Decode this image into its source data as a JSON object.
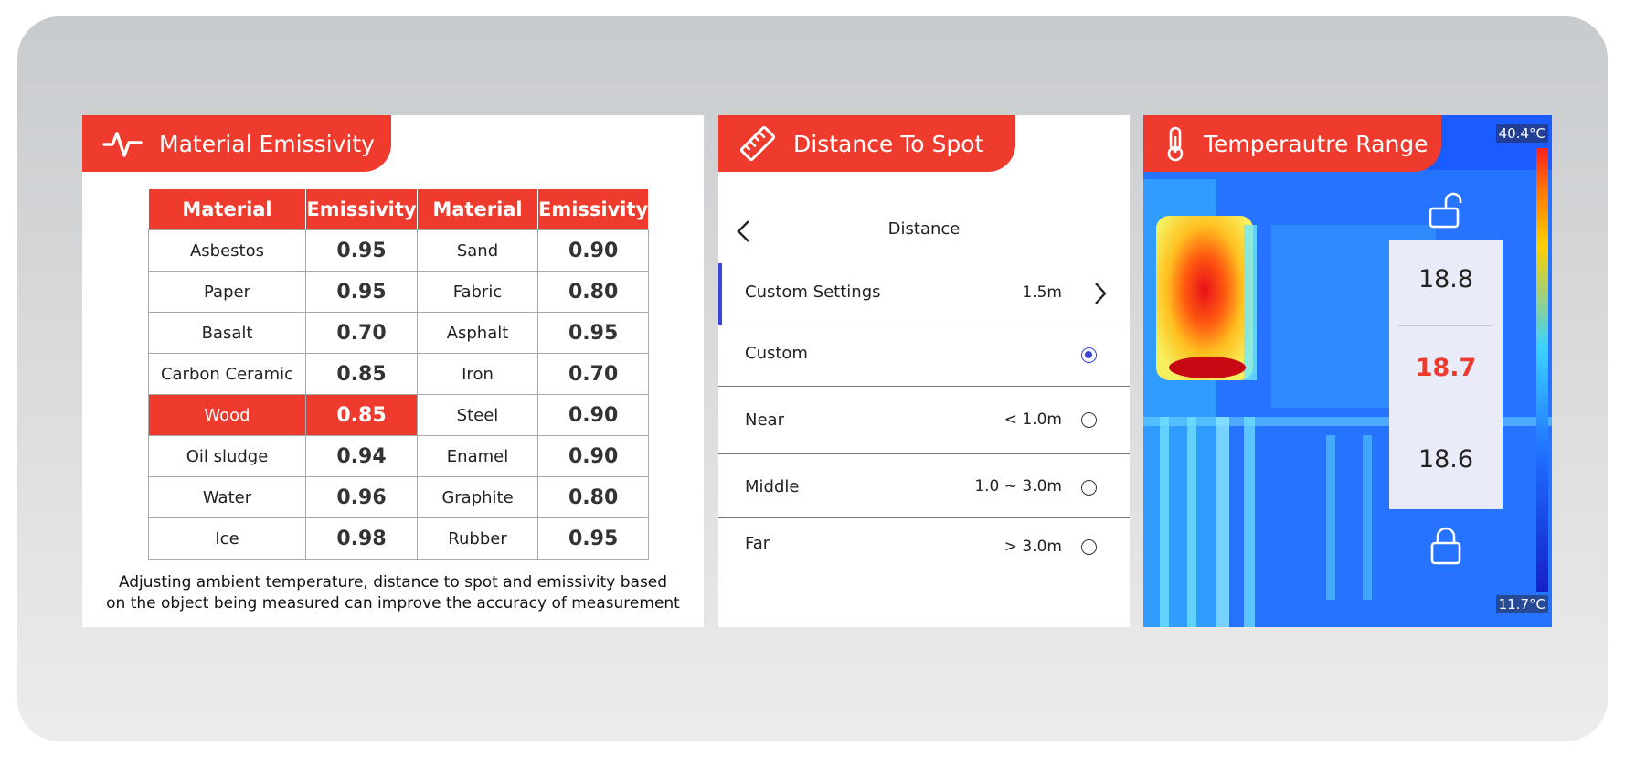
{
  "emissivity_panel": {
    "title": "Material Emissivity",
    "headers": [
      "Material",
      "Emissivity",
      "Material",
      "Emissivity"
    ],
    "rows": [
      [
        "Asbestos",
        "0.95",
        "Sand",
        "0.90"
      ],
      [
        "Paper",
        "0.95",
        "Fabric",
        "0.80"
      ],
      [
        "Basalt",
        "0.70",
        "Asphalt",
        "0.95"
      ],
      [
        "Carbon Ceramic",
        "0.85",
        "Iron",
        "0.70"
      ],
      [
        "Wood",
        "0.85",
        "Steel",
        "0.90"
      ],
      [
        "Oil sludge",
        "0.94",
        "Enamel",
        "0.90"
      ],
      [
        "Water",
        "0.96",
        "Graphite",
        "0.80"
      ],
      [
        "Ice",
        "0.98",
        "Rubber",
        "0.95"
      ]
    ],
    "highlighted_material": "Wood",
    "note_line1": "Adjusting ambient temperature, distance to spot and emissivity based",
    "note_line2": "on the object being measured can improve the accuracy of measurement"
  },
  "distance_panel": {
    "title": "Distance To Spot",
    "header": "Distance",
    "custom_settings": {
      "label": "Custom Settings",
      "value": "1.5m"
    },
    "options": [
      {
        "label": "Custom",
        "value": "",
        "selected": true
      },
      {
        "label": "Near",
        "value": "< 1.0m",
        "selected": false
      },
      {
        "label": "Middle",
        "value": "1.0 ~ 3.0m",
        "selected": false
      },
      {
        "label": "Far",
        "value": "> 3.0m",
        "selected": false
      }
    ]
  },
  "temperature_panel": {
    "title": "Temperautre Range",
    "max_temp": "40.4°C",
    "min_temp": "11.7°C",
    "readings": [
      "18.8",
      "18.7",
      "18.6"
    ],
    "upper_lock": "unlocked",
    "lower_lock": "locked"
  },
  "colors": {
    "accent": "#ee3b2e",
    "selected_radio": "#3c45d6",
    "center_reading": "#ee3b2e"
  }
}
